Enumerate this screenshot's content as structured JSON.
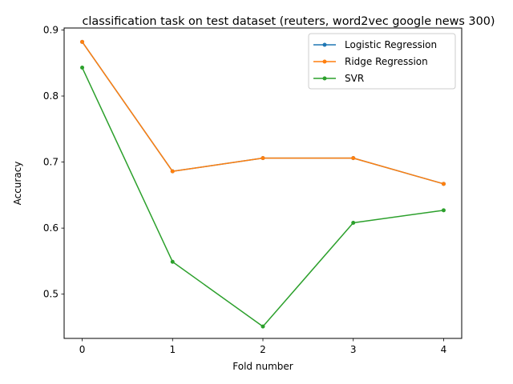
{
  "chart_data": {
    "type": "line",
    "title": "classification task on test dataset (reuters, word2vec google news 300)",
    "xlabel": "Fold number",
    "ylabel": "Accuracy",
    "x": [
      0,
      1,
      2,
      3,
      4
    ],
    "xticks": [
      "0",
      "1",
      "2",
      "3",
      "4"
    ],
    "yticks": [
      "0.5",
      "0.6",
      "0.7",
      "0.8",
      "0.9"
    ],
    "xlim": [
      -0.2,
      4.2
    ],
    "ylim": [
      0.433,
      0.903
    ],
    "grid": false,
    "legend_position": "top-right",
    "series": [
      {
        "name": "Logistic Regression",
        "color": "#1f77b4",
        "marker": "circle",
        "values": [
          0.882,
          0.686,
          0.706,
          0.706,
          0.667
        ]
      },
      {
        "name": "Ridge Regression",
        "color": "#ff7f0e",
        "marker": "circle",
        "values": [
          0.882,
          0.686,
          0.706,
          0.706,
          0.667
        ]
      },
      {
        "name": "SVR",
        "color": "#2ca02c",
        "marker": "circle",
        "values": [
          0.843,
          0.549,
          0.451,
          0.608,
          0.627
        ]
      }
    ]
  }
}
